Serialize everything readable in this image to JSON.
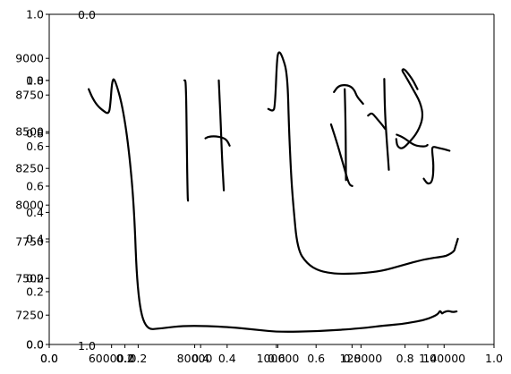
{
  "chart_data": {
    "type": "line",
    "title": "",
    "xlabel": "",
    "ylabel": "",
    "grid": false,
    "legend": "none",
    "stroke_color": "#000000",
    "background_color": "#ffffff",
    "axes": [
      {
        "role": "main-data-axes",
        "xlim": [
          45000,
          152000
        ],
        "ylim": [
          7050,
          9300
        ],
        "x_ticks": [
          60000,
          80000,
          100000,
          120000,
          140000
        ],
        "x_tick_labels": [
          "60000.0",
          "80000",
          "100000",
          "120000",
          "140000"
        ],
        "y_ticks": [
          7250,
          7500,
          7750,
          8000,
          8250,
          8500,
          8750,
          9000
        ],
        "y_tick_labels": [
          "7250",
          "7500",
          "7750",
          "8000",
          "8250",
          "8500",
          "8750",
          "9000"
        ]
      },
      {
        "role": "overlay-unit-axes-a",
        "xlim": [
          0,
          1
        ],
        "ylim": [
          0,
          1
        ],
        "x_ticks": [
          0.0,
          0.2,
          0.4,
          0.6,
          0.8,
          1.0
        ],
        "x_tick_labels": [
          "0.0",
          "0.2",
          "0.4",
          "0.6",
          "0.8",
          "1.0"
        ],
        "y_ticks": [
          0.0,
          0.2,
          0.4,
          0.6,
          0.8,
          1.0
        ],
        "y_tick_labels": [
          "0.0",
          "0.2",
          "0.4",
          "0.6",
          "0.8",
          "1.0"
        ]
      },
      {
        "role": "overlay-unit-axes-b",
        "xlim": [
          0,
          1
        ],
        "ylim": [
          0,
          1
        ],
        "x_ticks": [
          0.0,
          0.2,
          0.4,
          0.6,
          0.8,
          1.0
        ],
        "x_tick_labels": [
          "0.0",
          "0.2",
          "0.4",
          "0.6",
          "0.8",
          "1.0"
        ],
        "y_ticks": [
          0.0,
          0.2,
          0.4,
          0.6,
          0.8,
          1.0
        ],
        "y_tick_labels": [
          "0.0",
          "0.2",
          "0.4",
          "0.6",
          "0.8",
          "1.0"
        ]
      },
      {
        "role": "small-inset-axes",
        "x_tick_labels": [
          "1.0"
        ],
        "y_tick_labels": [
          "0.0"
        ]
      }
    ],
    "series": [
      {
        "x": [
          54500,
          55200,
          56500,
          58100,
          59300,
          59700,
          60200,
          61000,
          62600,
          64100,
          65400,
          66200,
          68000,
          72000,
          78000,
          88000,
          95000,
          100000,
          110000,
          120000,
          126000,
          130000,
          132000,
          135000,
          137500,
          138600,
          139000,
          139300,
          139500,
          139700,
          140000,
          141000,
          142000,
          143000
        ],
        "y": [
          8790,
          8740,
          8680,
          8640,
          8620,
          8680,
          8870,
          8840,
          8680,
          8400,
          8000,
          7400,
          7150,
          7160,
          7180,
          7170,
          7150,
          7135,
          7140,
          7160,
          7180,
          7190,
          7200,
          7215,
          7240,
          7260,
          7280,
          7270,
          7260,
          7265,
          7270,
          7280,
          7270,
          7275
        ]
      },
      {
        "x": [
          77500,
          77900,
          78100,
          78300,
          78400
        ],
        "y": [
          8850,
          8850,
          8400,
          8050,
          8030
        ]
      },
      {
        "x": [
          82600,
          83200,
          84800,
          86800,
          87800,
          88400
        ],
        "y": [
          8455,
          8465,
          8470,
          8460,
          8440,
          8405
        ]
      },
      {
        "x": [
          85800,
          86200,
          86600,
          87000
        ],
        "y": [
          8850,
          8600,
          8300,
          8100
        ]
      },
      {
        "x": [
          97700,
          98800,
          99300,
          99800,
          100200,
          101000,
          102300,
          102700,
          103200,
          103700,
          104700,
          107000,
          110000,
          114000,
          120000,
          125000,
          130000,
          135000,
          140000,
          141000,
          142400,
          142600,
          143300
        ],
        "y": [
          8655,
          8640,
          8665,
          9000,
          9050,
          9020,
          8900,
          8500,
          8200,
          8000,
          7700,
          7600,
          7550,
          7530,
          7535,
          7550,
          7590,
          7630,
          7650,
          7660,
          7685,
          7705,
          7770
        ]
      },
      {
        "x": [
          113500,
          114500,
          116000,
          117500,
          118500,
          119000,
          120500
        ],
        "y": [
          8770,
          8810,
          8820,
          8810,
          8780,
          8740,
          8690
        ]
      },
      {
        "x": [
          112800,
          114500,
          115800,
          117100,
          117900
        ],
        "y": [
          8550,
          8400,
          8270,
          8140,
          8130
        ]
      },
      {
        "x": [
          116100,
          116300,
          116400
        ],
        "y": [
          8790,
          8550,
          8170
        ]
      },
      {
        "x": [
          121700,
          122600,
          123500,
          124700,
          125800
        ],
        "y": [
          8610,
          8630,
          8600,
          8560,
          8520
        ]
      },
      {
        "x": [
          125600,
          125800,
          126300,
          126700
        ],
        "y": [
          8860,
          8600,
          8400,
          8240
        ]
      },
      {
        "x": [
          128500,
          128700,
          129900,
          131700,
          133700,
          135000,
          134300,
          132300,
          130500,
          129800,
          130400,
          131800,
          132700,
          133600
        ],
        "y": [
          8450,
          8400,
          8380,
          8430,
          8500,
          8600,
          8700,
          8800,
          8890,
          8920,
          8930,
          8880,
          8840,
          8790
        ]
      },
      {
        "x": [
          128600,
          130300,
          132600,
          134300,
          135600,
          136000
        ],
        "y": [
          8480,
          8460,
          8410,
          8400,
          8400,
          8410
        ]
      },
      {
        "x": [
          135100,
          136100,
          137200,
          137500,
          137100,
          137200,
          138600,
          140100,
          141300
        ],
        "y": [
          8180,
          8140,
          8160,
          8270,
          8370,
          8400,
          8390,
          8380,
          8370
        ]
      }
    ]
  }
}
